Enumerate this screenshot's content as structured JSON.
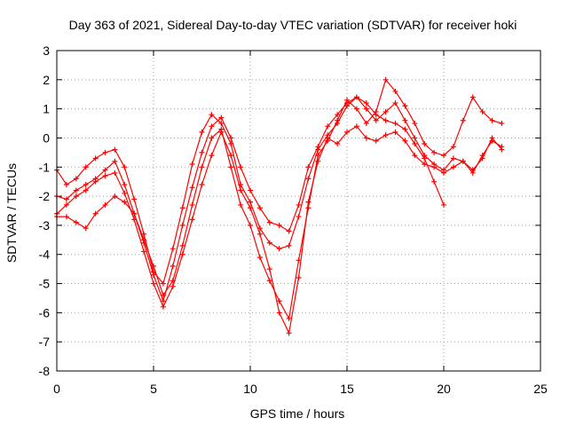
{
  "chart_data": {
    "type": "scatter",
    "title": "Day 363 of 2021, Sidereal Day-to-day VTEC variation (SDTVAR) for receiver hoki",
    "xlabel": "GPS time / hours",
    "ylabel": "SDTVAR / TECUs",
    "xlim": [
      0,
      25
    ],
    "ylim": [
      -8,
      3
    ],
    "xticks": [
      0,
      5,
      10,
      15,
      20,
      25
    ],
    "yticks": [
      -8,
      -7,
      -6,
      -5,
      -4,
      -3,
      -2,
      -1,
      0,
      1,
      2,
      3
    ],
    "xtick_labels": [
      "0",
      "5",
      "10",
      "15",
      "20",
      "25"
    ],
    "ytick_labels": [
      "-8",
      "-7",
      "-6",
      "-5",
      "-4",
      "-3",
      "-2",
      "-1",
      "0",
      "1",
      "2",
      "3"
    ],
    "grid": true,
    "marker": "+",
    "color": "#ff0000",
    "series": [
      {
        "name": "trace-1",
        "x": [
          0,
          0.5,
          1,
          1.5,
          2,
          2.5,
          3,
          3.5,
          4,
          4.5,
          5,
          5.5,
          6,
          6.5,
          7,
          7.5,
          8,
          8.5,
          9,
          9.5,
          10,
          10.5,
          11,
          11.5,
          12,
          12.5,
          13,
          13.5,
          14,
          14.5,
          15,
          15.5,
          16,
          16.5,
          17,
          17.5,
          18,
          18.5,
          19,
          19.5,
          20
        ],
        "y": [
          -1.1,
          -1.6,
          -1.4,
          -1.0,
          -0.7,
          -0.5,
          -0.4,
          -1.0,
          -2.1,
          -3.3,
          -4.6,
          -5.0,
          -3.8,
          -2.4,
          -0.9,
          0.2,
          0.8,
          0.5,
          -0.2,
          -1.6,
          -2.2,
          -3.1,
          -3.6,
          -3.8,
          -3.7,
          -2.7,
          -1.4,
          -0.4,
          0.1,
          0.5,
          1.1,
          1.4,
          1.2,
          0.8,
          0.6,
          0.5,
          0.3,
          -0.2,
          -0.7,
          -1.5,
          -2.3
        ]
      },
      {
        "name": "trace-2",
        "x": [
          0,
          0.5,
          1,
          1.5,
          2,
          2.5,
          3,
          3.5,
          4,
          4.5,
          5,
          5.5,
          6,
          6.5,
          7,
          7.5,
          8,
          8.5,
          9,
          9.5,
          10,
          10.5,
          11,
          11.5,
          12,
          12.5,
          13,
          13.5,
          14,
          14.5,
          15,
          15.5,
          16,
          16.5,
          17,
          17.5,
          18,
          18.5,
          19,
          19.5,
          20,
          20.5,
          21,
          21.5,
          22,
          22.5,
          23
        ],
        "y": [
          -2.0,
          -2.1,
          -1.8,
          -1.6,
          -1.4,
          -1.1,
          -0.8,
          -1.6,
          -2.6,
          -3.6,
          -4.7,
          -5.6,
          -4.4,
          -3.0,
          -1.7,
          -0.5,
          0.4,
          0.7,
          0.0,
          -1.0,
          -1.8,
          -2.4,
          -2.9,
          -3.0,
          -3.2,
          -2.3,
          -1.0,
          -0.3,
          0.4,
          0.8,
          1.2,
          1.4,
          1.0,
          0.6,
          0.9,
          1.2,
          0.6,
          0.0,
          -0.6,
          -0.9,
          -1.1,
          -0.7,
          -0.8,
          -1.2,
          -0.6,
          -0.1,
          -0.3
        ]
      },
      {
        "name": "trace-3",
        "x": [
          0,
          0.5,
          1,
          1.5,
          2,
          2.5,
          3,
          3.5,
          4,
          4.5,
          5,
          5.5,
          6,
          6.5,
          7,
          7.5,
          8,
          8.5,
          9,
          9.5,
          10,
          10.5,
          11,
          11.5,
          12,
          12.5,
          13,
          13.5,
          14,
          14.5,
          15,
          15.5,
          16,
          16.5,
          17,
          17.5,
          18,
          18.5,
          19,
          19.5,
          20,
          20.5,
          21,
          21.5,
          22,
          22.5,
          23
        ],
        "y": [
          -2.6,
          -2.3,
          -2.0,
          -1.8,
          -1.5,
          -1.3,
          -1.2,
          -1.9,
          -2.8,
          -3.9,
          -5.0,
          -5.8,
          -5.1,
          -4.0,
          -2.8,
          -1.6,
          -0.6,
          0.2,
          -0.6,
          -1.8,
          -2.4,
          -3.3,
          -4.5,
          -6.0,
          -6.7,
          -4.8,
          -2.2,
          -0.8,
          0.0,
          -0.2,
          0.2,
          0.4,
          0.0,
          -0.1,
          0.1,
          0.2,
          -0.1,
          -0.6,
          -0.9,
          -1.0,
          -1.2,
          -1.0,
          -0.8,
          -1.1,
          -0.7,
          0.0,
          -0.4
        ]
      },
      {
        "name": "trace-4",
        "x": [
          0,
          0.5,
          1,
          1.5,
          2,
          2.5,
          3,
          3.5,
          4,
          4.5,
          5,
          5.5,
          6,
          6.5,
          7,
          7.5,
          8,
          8.5,
          9,
          9.5,
          10,
          10.5,
          11,
          11.5,
          12,
          12.5,
          13,
          13.5,
          14,
          14.5,
          15,
          15.5,
          16,
          16.5,
          17,
          17.5,
          18,
          18.5,
          19,
          19.5,
          20,
          20.5,
          21,
          21.5,
          22,
          22.5,
          23
        ],
        "y": [
          -2.7,
          -2.7,
          -2.9,
          -3.1,
          -2.6,
          -2.3,
          -2.0,
          -2.2,
          -2.6,
          -3.5,
          -4.4,
          -5.4,
          -4.9,
          -3.7,
          -2.3,
          -1.0,
          0.0,
          0.3,
          -1.0,
          -2.3,
          -3.0,
          -4.1,
          -4.9,
          -5.6,
          -6.2,
          -4.2,
          -2.4,
          -0.6,
          -0.1,
          0.6,
          1.3,
          1.0,
          0.5,
          0.9,
          2.0,
          1.6,
          1.1,
          0.5,
          -0.2,
          -0.5,
          -0.6,
          -0.3,
          0.6,
          1.4,
          0.9,
          0.6,
          0.5
        ]
      }
    ]
  }
}
